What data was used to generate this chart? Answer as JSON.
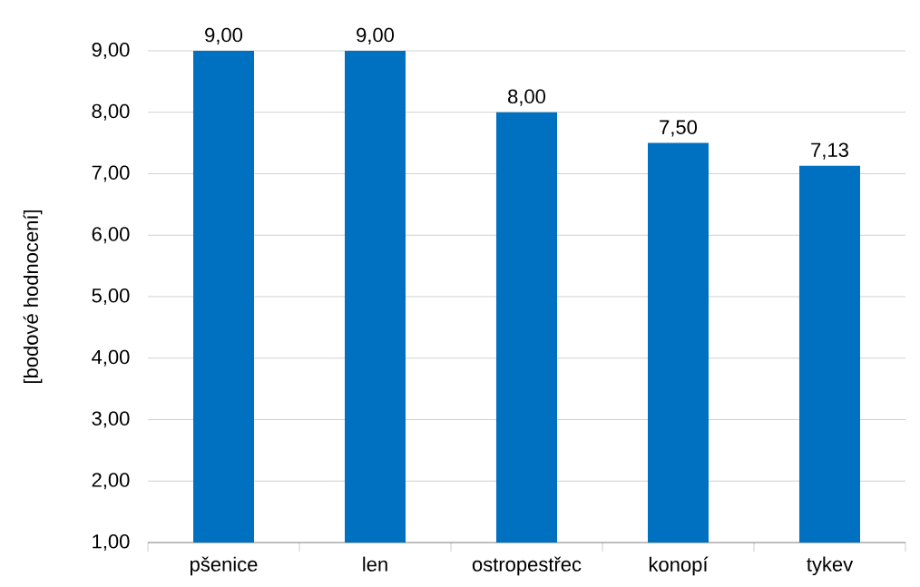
{
  "chart_data": {
    "type": "bar",
    "ylabel": "[bodové hodnocení]",
    "categories": [
      "pšenice",
      "len",
      "ostropestřec",
      "konopí",
      "tykev"
    ],
    "values": [
      9,
      9,
      8,
      7.5,
      7.13
    ],
    "value_labels": [
      "9,00",
      "9,00",
      "8,00",
      "7,50",
      "7,13"
    ],
    "color": "#0070c0",
    "ylim": [
      1,
      9
    ],
    "yticks": [
      {
        "value": 1,
        "label": "1,00"
      },
      {
        "value": 2,
        "label": "2,00"
      },
      {
        "value": 3,
        "label": "3,00"
      },
      {
        "value": 4,
        "label": "4,00"
      },
      {
        "value": 5,
        "label": "5,00"
      },
      {
        "value": 6,
        "label": "6,00"
      },
      {
        "value": 7,
        "label": "7,00"
      },
      {
        "value": 8,
        "label": "8,00"
      },
      {
        "value": 9,
        "label": "9,00"
      }
    ],
    "grid": "y"
  }
}
